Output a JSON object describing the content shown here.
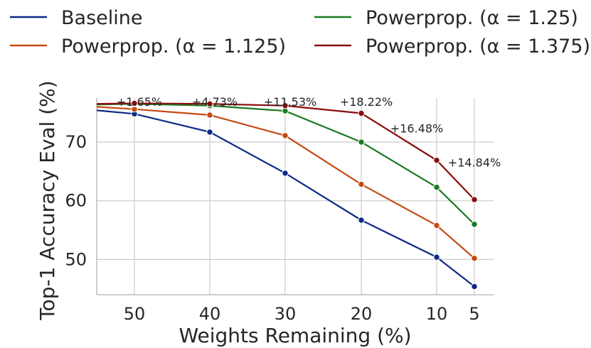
{
  "chart_data": {
    "type": "line",
    "title": "",
    "xlabel": "Weights Remaining (%)",
    "ylabel": "Top-1 Accuracy Eval (%)",
    "x": [
      50,
      40,
      30,
      20,
      10,
      5
    ],
    "x_ticks": [
      "50",
      "40",
      "30",
      "20",
      "10",
      "5"
    ],
    "ylim": [
      44,
      77.5
    ],
    "y_ticks": [
      "50",
      "60",
      "70"
    ],
    "grid": true,
    "series": [
      {
        "name": "Baseline",
        "legend_name": "Baseline",
        "color": "#0d2a87",
        "start_value": 75.4,
        "values": [
          74.8,
          71.7,
          64.7,
          56.7,
          50.4,
          45.4
        ]
      },
      {
        "name": "Powerprop. (alpha = 1.125)",
        "legend_name": "Powerprop. (α = 1.125)",
        "color": "#c54a12",
        "start_value": 76.0,
        "values": [
          75.6,
          74.6,
          71.1,
          62.8,
          55.8,
          50.2
        ]
      },
      {
        "name": "Powerprop. (alpha = 1.25)",
        "legend_name": "Powerprop. (α = 1.25)",
        "color": "#1c7a22",
        "start_value": 76.4,
        "values": [
          76.5,
          76.2,
          75.3,
          70.0,
          62.3,
          56.0
        ]
      },
      {
        "name": "Powerprop. (alpha = 1.375)",
        "legend_name": "Powerprop. (α = 1.375)",
        "color": "#8a0d0d",
        "start_value": 76.5,
        "values": [
          76.6,
          76.5,
          76.2,
          74.9,
          66.9,
          60.2
        ]
      }
    ],
    "annotations": [
      {
        "x": 50,
        "text": "+1.65%"
      },
      {
        "x": 40,
        "text": "+4.73%"
      },
      {
        "x": 30,
        "text": "+11.53%"
      },
      {
        "x": 20,
        "text": "+18.22%"
      },
      {
        "x": 10,
        "text": "+16.48%"
      },
      {
        "x": 5,
        "text": "+14.84%"
      }
    ],
    "legend_position": "top"
  }
}
